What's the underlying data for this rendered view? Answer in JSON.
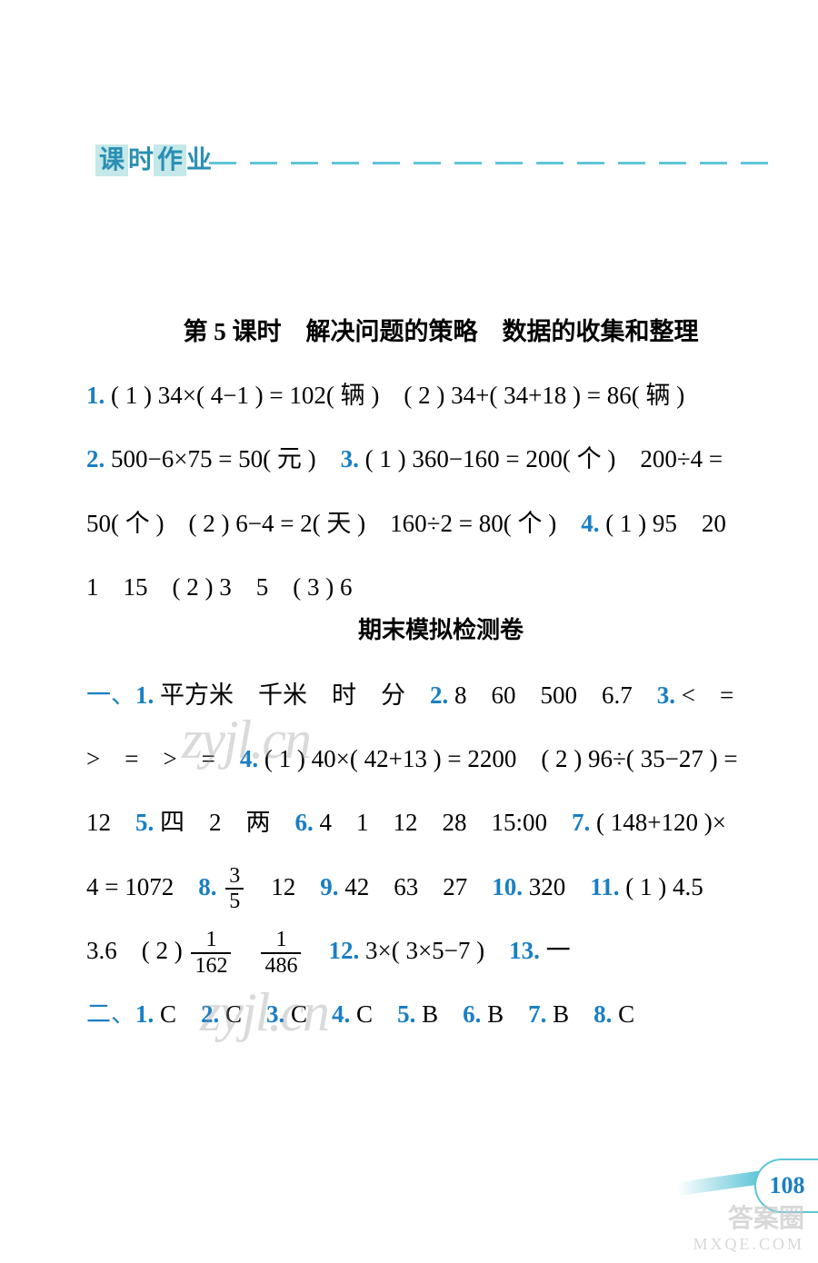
{
  "header": {
    "label_chars": [
      "课",
      "时",
      "作",
      "业"
    ]
  },
  "lesson5": {
    "title": "第 5 课时　解决问题的策略　数据的收集和整理",
    "line1": {
      "q1": "1.",
      "text": " ( 1 ) 34×( 4−1 ) = 102( 辆 )　( 2 ) 34+( 34+18 ) = 86( 辆 )"
    },
    "line2_q2": "2.",
    "line2_q2_text": " 500−6×75 = 50( 元 )　",
    "line2_q3": "3.",
    "line2_q3_text": " ( 1 ) 360−160 = 200( 个 )　200÷4 =",
    "line3": "50( 个 )　( 2 ) 6−4 = 2( 天 )　160÷2 = 80( 个 )　",
    "line3_q4": "4.",
    "line3_q4_text": " ( 1 ) 95　20",
    "line4": "1　15　( 2 ) 3　5　( 3 ) 6"
  },
  "exam": {
    "title": "期末模拟检测卷",
    "sec1": "一、",
    "q1": "1.",
    "q1_text": " 平方米　千米　时　分　",
    "q2": "2.",
    "q2_text": " 8　60　500　6.7　",
    "q3": "3.",
    "q3_text": " <　=",
    "line2a": ">　=　>　=　",
    "q4": "4.",
    "q4_text": " ( 1 ) 40×( 42+13 ) = 2200　( 2 ) 96÷( 35−27 ) =",
    "line3a": "12　",
    "q5": "5.",
    "q5_text": " 四　2　两　",
    "q6": "6.",
    "q6_text": " 4　1　12　28　15:00　",
    "q7": "7.",
    "q7_text": " ( 148+120 )×",
    "line4a": "4 = 1072　",
    "q8": "8.",
    "q8_frac_num": "3",
    "q8_frac_den": "5",
    "q8_text2": "　12　",
    "q9": "9.",
    "q9_text": " 42　63　27　",
    "q10": "10.",
    "q10_text": " 320　",
    "q11": "11.",
    "q11_text": " ( 1 ) 4.5",
    "line5a": "3.6　( 2 ) ",
    "q11_f1_num": "1",
    "q11_f1_den": "162",
    "line5b": "　",
    "q11_f2_num": "1",
    "q11_f2_den": "486",
    "line5c": "　",
    "q12": "12.",
    "q12_text": " 3×( 3×5−7 )　",
    "q13": "13.",
    "q13_text": " 一",
    "sec2": "二、",
    "s2q1": "1.",
    "s2q1t": " C　",
    "s2q2": "2.",
    "s2q2t": " C　",
    "s2q3": "3.",
    "s2q3t": " C　",
    "s2q4": "4.",
    "s2q4t": " C　",
    "s2q5": "5.",
    "s2q5t": " B　",
    "s2q6": "6.",
    "s2q6t": " B　",
    "s2q7": "7.",
    "s2q7t": " B　",
    "s2q8": "8.",
    "s2q8t": " C"
  },
  "page_number": "108",
  "watermarks": {
    "zyjl": "zyjl.cn",
    "bottom1": "答案圈",
    "bottom2": "MXQE.COM"
  },
  "colors": {
    "accent": "#1a7fc4",
    "cyan": "#5ec5d8",
    "highlight": "#c5e8e8"
  }
}
